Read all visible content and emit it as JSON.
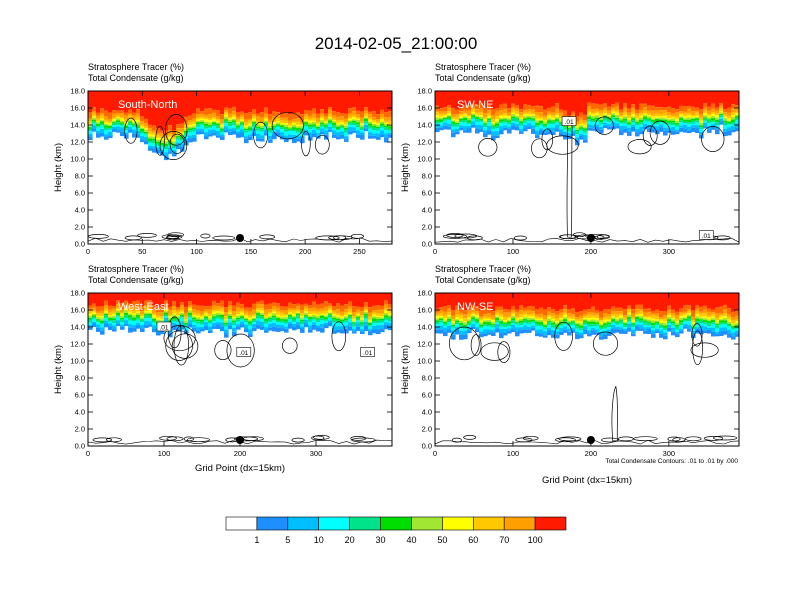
{
  "figure": {
    "title": "2014-02-05_21:00:00",
    "footnote": "Total Condensate Contours: .01 to .01 by .000",
    "colorbar": {
      "labels": [
        "1",
        "5",
        "10",
        "20",
        "30",
        "40",
        "50",
        "60",
        "70",
        "100"
      ],
      "colors": [
        "#ffffff",
        "#1e8fff",
        "#00bfff",
        "#00ffff",
        "#00e38a",
        "#00dd00",
        "#a0e632",
        "#ffff00",
        "#ffc800",
        "#ffa000",
        "#ff6a00",
        "#ff1a00"
      ]
    }
  },
  "chart_data": [
    {
      "type": "heatmap",
      "panel": "South-North",
      "title_line1": "Stratosphere Tracer   (%)",
      "title_line2": "Total Condensate   (g/kg)",
      "ylabel": "Height (km)",
      "xlabel": "",
      "xlim": [
        0,
        280
      ],
      "ylim": [
        0,
        18
      ],
      "xticks": [
        "0",
        "50",
        "100",
        "150",
        "200",
        "250"
      ],
      "yticks": [
        "0.0",
        "2.0",
        "4.0",
        "6.0",
        "8.0",
        "10.0",
        "12.0",
        "14.0",
        "16.0",
        "18.0"
      ],
      "marker_x": 140,
      "contour_labels": [],
      "tropopause_km": 14.5
    },
    {
      "type": "heatmap",
      "panel": "SW-NE",
      "title_line1": "Stratosphere Tracer   (%)",
      "title_line2": "Total Condensate   (g/kg)",
      "ylabel": "Height (km)",
      "xlabel": "",
      "xlim": [
        0,
        390
      ],
      "ylim": [
        0,
        18
      ],
      "xticks": [
        "0",
        "100",
        "200",
        "300"
      ],
      "yticks": [
        "0.0",
        "2.0",
        "4.0",
        "6.0",
        "8.0",
        "10.0",
        "12.0",
        "14.0",
        "16.0",
        "18.0"
      ],
      "marker_x": 200,
      "contour_labels": [
        ".01",
        ".01"
      ],
      "tropopause_km": 15.0
    },
    {
      "type": "heatmap",
      "panel": "West-East",
      "title_line1": "Stratosphere Tracer   (%)",
      "title_line2": "Total Condensate   (g/kg)",
      "ylabel": "Height (km)",
      "xlabel": "Grid Point (dx=15km)",
      "xlim": [
        0,
        400
      ],
      "ylim": [
        0,
        18
      ],
      "xticks": [
        "0",
        "100",
        "200",
        "300"
      ],
      "yticks": [
        "0.0",
        "2.0",
        "4.0",
        "6.0",
        "8.0",
        "10.0",
        "12.0",
        "14.0",
        "16.0",
        "18.0"
      ],
      "marker_x": 200,
      "contour_labels": [
        ".01",
        ".01",
        ".01"
      ],
      "tropopause_km": 15.5
    },
    {
      "type": "heatmap",
      "panel": "NW-SE",
      "title_line1": "Stratosphere Tracer   (%)",
      "title_line2": "Total Condensate   (g/kg)",
      "ylabel": "Height (km)",
      "xlabel": "Grid Point (dx=15km)",
      "xlim": [
        0,
        390
      ],
      "ylim": [
        0,
        18
      ],
      "xticks": [
        "0",
        "100",
        "200",
        "300"
      ],
      "yticks": [
        "0.0",
        "2.0",
        "4.0",
        "6.0",
        "8.0",
        "10.0",
        "12.0",
        "14.0",
        "16.0",
        "18.0"
      ],
      "marker_x": 200,
      "contour_labels": [],
      "tropopause_km": 15.0
    }
  ]
}
